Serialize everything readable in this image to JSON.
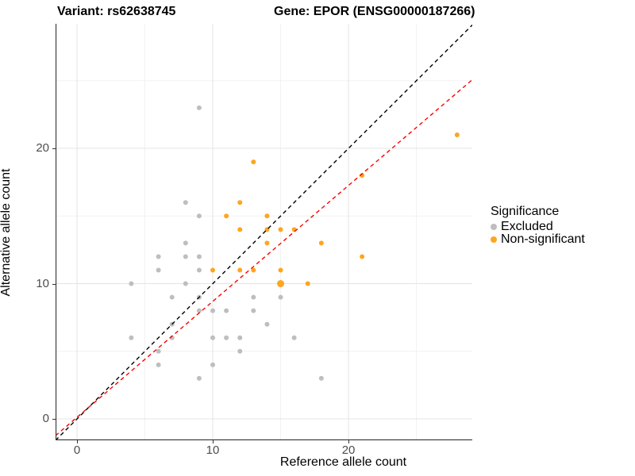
{
  "titles": {
    "left": "Variant: rs62638745",
    "right": "Gene: EPOR (ENSG00000187266)"
  },
  "axes": {
    "x": {
      "label": "Reference allele count"
    },
    "y": {
      "label": "Alternative allele count"
    }
  },
  "legend": {
    "title": "Significance",
    "items": [
      {
        "label": "Excluded",
        "color": "#BEBEBE"
      },
      {
        "label": "Non-significant",
        "color": "#FFA51E"
      }
    ]
  },
  "colors": {
    "identity_line": "#000000",
    "fit_line": "#FF0000",
    "grid_major": "#E4E4E4",
    "grid_minor": "#F2F2F2",
    "axis_line": "#333333",
    "tick_label": "#4d4d4d"
  },
  "chart_data": {
    "type": "scatter",
    "title": "Variant: rs62638745 / Gene: EPOR (ENSG00000187266)",
    "xlabel": "Reference allele count",
    "ylabel": "Alternative allele count",
    "xlim": [
      -1.58,
      29.12
    ],
    "ylim": [
      -1.58,
      29.21
    ],
    "x_ticks": [
      0,
      10,
      20
    ],
    "x_minor": [
      5,
      15,
      25
    ],
    "y_ticks": [
      0,
      10,
      20
    ],
    "y_minor": [
      5,
      15,
      25
    ],
    "grid": true,
    "legend_position": "right",
    "series": [
      {
        "name": "Excluded",
        "color": "#BEBEBE",
        "points": [
          [
            9,
            23
          ],
          [
            8,
            16
          ],
          [
            9,
            15
          ],
          [
            8,
            13
          ],
          [
            6,
            12
          ],
          [
            8,
            12
          ],
          [
            9,
            12
          ],
          [
            6,
            11
          ],
          [
            9,
            11
          ],
          [
            4,
            10
          ],
          [
            8,
            10
          ],
          [
            7,
            9
          ],
          [
            9,
            9
          ],
          [
            13,
            9
          ],
          [
            15,
            9
          ],
          [
            9,
            8
          ],
          [
            10,
            8
          ],
          [
            11,
            8
          ],
          [
            13,
            8
          ],
          [
            7,
            7
          ],
          [
            14,
            7
          ],
          [
            4,
            6
          ],
          [
            7,
            6
          ],
          [
            10,
            6
          ],
          [
            11,
            6
          ],
          [
            12,
            6
          ],
          [
            16,
            6
          ],
          [
            6,
            5
          ],
          [
            12,
            5
          ],
          [
            6,
            4
          ],
          [
            10,
            4
          ],
          [
            9,
            3
          ],
          [
            18,
            3
          ]
        ]
      },
      {
        "name": "Non-significant",
        "color": "#FFA51E",
        "points": [
          [
            13,
            19
          ],
          [
            12,
            16
          ],
          [
            11,
            15
          ],
          [
            14,
            15
          ],
          [
            12,
            14
          ],
          [
            14,
            14
          ],
          [
            15,
            14
          ],
          [
            16,
            14
          ],
          [
            14,
            13
          ],
          [
            18,
            13
          ],
          [
            10,
            11
          ],
          [
            12,
            11
          ],
          [
            13,
            11
          ],
          [
            15,
            11
          ],
          [
            15,
            10,
            4.5
          ],
          [
            17,
            10
          ],
          [
            21,
            18
          ],
          [
            21,
            12
          ],
          [
            28,
            21
          ]
        ]
      }
    ],
    "lines": [
      {
        "name": "identity",
        "slope": 1,
        "intercept": 0,
        "color": "#000000",
        "style": "dashed"
      },
      {
        "name": "fit",
        "slope": 0.857,
        "intercept": 0.12,
        "color": "#FF0000",
        "style": "dashed"
      }
    ]
  }
}
